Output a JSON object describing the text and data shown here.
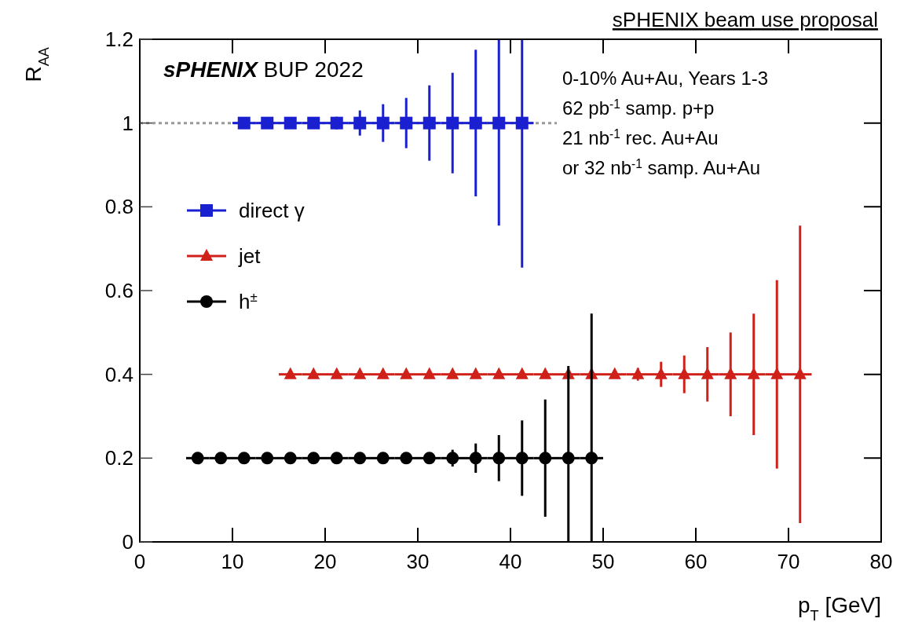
{
  "chart_data": {
    "type": "scatter",
    "title": "sPHENIX beam use proposal",
    "xlabel": "p$_{T}$ [GeV]",
    "ylabel": "R$_{AA}$",
    "annotations": [
      "sPHENIX BUP 2022",
      "0-10% Au+Au, Years 1-3",
      "62 pb$^{-1}$ samp. p+p",
      "21 nb$^{-1}$ rec. Au+Au",
      "or 32 nb$^{-1}$ samp. Au+Au"
    ],
    "xlim": [
      0,
      80
    ],
    "ylim": [
      0,
      1.2
    ],
    "xticks": [
      0,
      10,
      20,
      30,
      40,
      50,
      60,
      70,
      80
    ],
    "yticks": [
      0,
      0.2,
      0.4,
      0.6,
      0.8,
      1,
      1.2
    ],
    "grid": false,
    "legend": "left",
    "series": [
      {
        "type": "line",
        "color": "#999999",
        "line_style": "dotted",
        "marker": "none",
        "x": [
          0,
          45
        ],
        "values": [
          1,
          1
        ]
      },
      {
        "name": "direct γ",
        "color": "#1a1fd0",
        "marker": "square",
        "x": [
          11.25,
          13.75,
          16.25,
          18.75,
          21.25,
          23.75,
          26.25,
          28.75,
          31.25,
          33.75,
          36.25,
          38.75,
          41.25
        ],
        "values": [
          1,
          1,
          1,
          1,
          1,
          1,
          1,
          1,
          1,
          1,
          1,
          1,
          1
        ],
        "errors": [
          0.005,
          0.005,
          0.005,
          0.01,
          0.015,
          0.03,
          0.045,
          0.06,
          0.09,
          0.12,
          0.175,
          0.245,
          0.345
        ],
        "xerrors": [
          1.25,
          1.25,
          1.25,
          1.25,
          1.25,
          1.25,
          1.25,
          1.25,
          1.25,
          1.25,
          1.25,
          1.25,
          1.25
        ]
      },
      {
        "name": "jet",
        "color": "#d0201a",
        "marker": "triangle",
        "x": [
          16.25,
          18.75,
          21.25,
          23.75,
          26.25,
          28.75,
          31.25,
          33.75,
          36.25,
          38.75,
          41.25,
          43.75,
          46.25,
          48.75,
          51.25,
          53.75,
          56.25,
          58.75,
          61.25,
          63.75,
          66.25,
          68.75,
          71.25
        ],
        "values": [
          0.4,
          0.4,
          0.4,
          0.4,
          0.4,
          0.4,
          0.4,
          0.4,
          0.4,
          0.4,
          0.4,
          0.4,
          0.4,
          0.4,
          0.4,
          0.4,
          0.4,
          0.4,
          0.4,
          0.4,
          0.4,
          0.4,
          0.4
        ],
        "errors": [
          0.002,
          0.002,
          0.002,
          0.002,
          0.002,
          0.002,
          0.002,
          0.002,
          0.002,
          0.002,
          0.002,
          0.002,
          0.003,
          0.005,
          0.008,
          0.015,
          0.03,
          0.045,
          0.065,
          0.1,
          0.145,
          0.225,
          0.355
        ],
        "xerrors": [
          1.25,
          1.25,
          1.25,
          1.25,
          1.25,
          1.25,
          1.25,
          1.25,
          1.25,
          1.25,
          1.25,
          1.25,
          1.25,
          1.25,
          1.25,
          1.25,
          1.25,
          1.25,
          1.25,
          1.25,
          1.25,
          1.25,
          1.25
        ]
      },
      {
        "name": "h$^{±}$",
        "color": "#000000",
        "marker": "circle",
        "x": [
          6.25,
          8.75,
          11.25,
          13.75,
          16.25,
          18.75,
          21.25,
          23.75,
          26.25,
          28.75,
          31.25,
          33.75,
          36.25,
          38.75,
          41.25,
          43.75,
          46.25,
          48.75
        ],
        "values": [
          0.2,
          0.2,
          0.2,
          0.2,
          0.2,
          0.2,
          0.2,
          0.2,
          0.2,
          0.2,
          0.2,
          0.2,
          0.2,
          0.2,
          0.2,
          0.2,
          0.2,
          0.2
        ],
        "errors": [
          0.002,
          0.002,
          0.002,
          0.002,
          0.002,
          0.002,
          0.002,
          0.002,
          0.002,
          0.005,
          0.01,
          0.02,
          0.035,
          0.055,
          0.09,
          0.14,
          0.22,
          0.345
        ],
        "xerrors": [
          1.25,
          1.25,
          1.25,
          1.25,
          1.25,
          1.25,
          1.25,
          1.25,
          1.25,
          1.25,
          1.25,
          1.25,
          1.25,
          1.25,
          1.25,
          1.25,
          1.25,
          1.25
        ]
      }
    ]
  }
}
